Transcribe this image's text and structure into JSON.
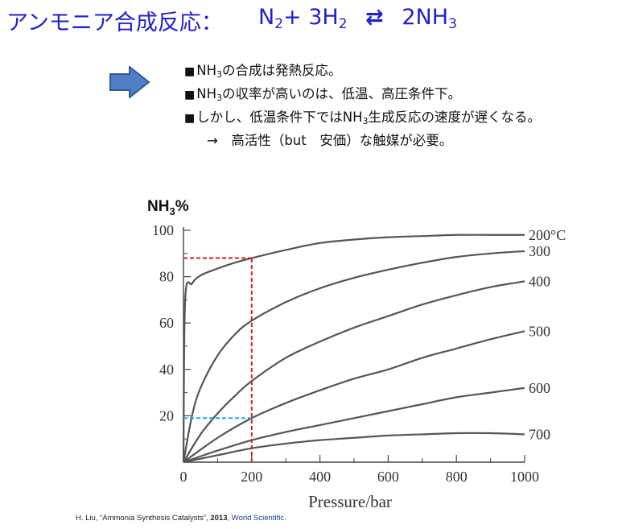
{
  "header": {
    "title": "アンモニア合成反応：",
    "equation": {
      "left": "N",
      "left_sub": "2",
      "plus": "+",
      "coef": "3H",
      "coef_sub": "2",
      "arrow": "⇄",
      "right": "2NH",
      "right_sub": "3"
    },
    "color": "#2222cc"
  },
  "bullets": {
    "icon": "right-arrow-icon",
    "items": [
      {
        "marker": "■",
        "pre": "NH",
        "sub": "3",
        "post": "の合成は発熱反応。"
      },
      {
        "marker": "■",
        "pre": "NH",
        "sub": "3",
        "post": "の収率が高いのは、低温、高圧条件下。"
      },
      {
        "marker": "■",
        "pre": "しかし、低温条件下ではNH",
        "sub": "3",
        "post": "生成反応の速度が遅くなる。"
      }
    ],
    "note": "→　高活性（but　安価）な触媒が必要。"
  },
  "chart_data": {
    "type": "line",
    "ylabel": "NH3%",
    "ylabel_main": "NH",
    "ylabel_sub": "3",
    "ylabel_tail": "%",
    "xlabel": "Pressure/bar",
    "xlim": [
      0,
      1000
    ],
    "ylim": [
      0,
      100
    ],
    "x_ticks": [
      "0",
      "200",
      "400",
      "600",
      "800",
      "1000"
    ],
    "y_ticks": [
      "20",
      "40",
      "60",
      "80",
      "100"
    ],
    "grid": false,
    "series": [
      {
        "name": "200",
        "unit": "°C",
        "x": [
          0,
          5,
          25,
          50,
          100,
          150,
          200,
          300,
          400,
          500,
          600,
          700,
          800,
          900,
          1000
        ],
        "y": [
          0,
          70,
          77,
          80.5,
          83.5,
          86,
          88,
          91.5,
          94.5,
          96,
          97,
          97.5,
          98,
          98,
          98
        ]
      },
      {
        "name": "300",
        "x": [
          0,
          25,
          50,
          100,
          150,
          200,
          300,
          400,
          500,
          600,
          700,
          800,
          900,
          1000
        ],
        "y": [
          0,
          20,
          32,
          46,
          55,
          61,
          69,
          75,
          79.5,
          83,
          86,
          88.5,
          90,
          91
        ]
      },
      {
        "name": "400",
        "x": [
          0,
          50,
          100,
          150,
          200,
          300,
          400,
          500,
          600,
          700,
          800,
          900,
          1000
        ],
        "y": [
          0,
          12,
          21,
          28.5,
          35,
          45,
          52,
          58,
          63,
          68,
          72,
          75.5,
          78
        ]
      },
      {
        "name": "500",
        "x": [
          0,
          100,
          200,
          300,
          400,
          500,
          600,
          700,
          800,
          900,
          1000
        ],
        "y": [
          0,
          10.5,
          19,
          25.5,
          31,
          36,
          40,
          45,
          49,
          53,
          56.5
        ]
      },
      {
        "name": "600",
        "x": [
          0,
          100,
          200,
          300,
          400,
          500,
          600,
          700,
          800,
          900,
          1000
        ],
        "y": [
          0,
          5,
          9.5,
          13,
          16,
          19,
          22,
          25,
          28,
          30,
          32
        ]
      },
      {
        "name": "700",
        "x": [
          0,
          100,
          200,
          300,
          400,
          500,
          600,
          700,
          800,
          900,
          1000
        ],
        "y": [
          0,
          3,
          6,
          8,
          9.5,
          10.5,
          11.5,
          12,
          12.5,
          12.5,
          12
        ]
      }
    ],
    "annotations": [
      {
        "type": "vline",
        "x": 200,
        "y_to": 88,
        "color": "#cc2222"
      },
      {
        "type": "hline",
        "y": 88,
        "x_to": 200,
        "color": "#cc2222"
      },
      {
        "type": "hline",
        "y": 19,
        "x_to": 200,
        "color": "#22aadd"
      }
    ]
  },
  "citation": {
    "author": "H. Liu, “Ammonia Synthesis Catalysts”, ",
    "year": "2013",
    "sep": ", ",
    "publisher": "World Scientific."
  }
}
